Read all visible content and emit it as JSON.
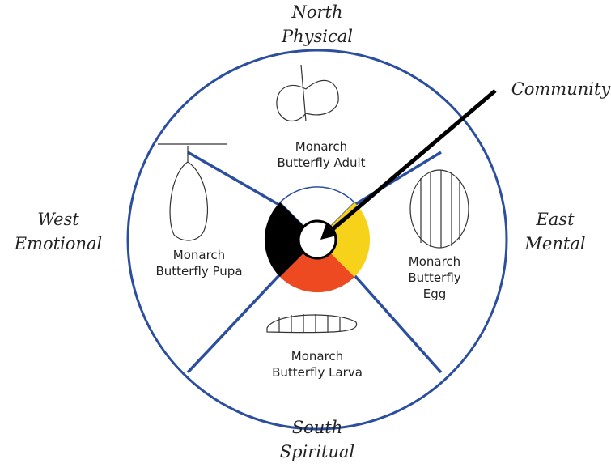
{
  "center_label": "Community",
  "directions": [
    {
      "name": "North",
      "aspect": "Physical"
    },
    {
      "name": "East",
      "aspect": "Mental"
    },
    {
      "name": "South",
      "aspect": "Spiritual"
    },
    {
      "name": "West",
      "aspect": "Emotional"
    }
  ],
  "stages": [
    {
      "lines": [
        "Monarch",
        "Butterfly Adult"
      ]
    },
    {
      "lines": [
        "Monarch",
        "Butterfly",
        "Egg"
      ]
    },
    {
      "lines": [
        "Monarch",
        "Butterfly Larva"
      ]
    },
    {
      "lines": [
        "Monarch",
        "Butterfly Pupa"
      ]
    }
  ]
}
